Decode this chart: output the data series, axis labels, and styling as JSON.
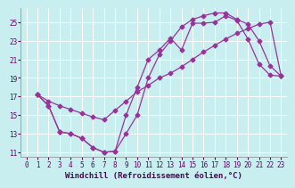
{
  "xlabel": "Windchill (Refroidissement éolien,°C)",
  "bg_color": "#c8eef0",
  "line_color": "#993399",
  "grid_color": "#ffffff",
  "xlim": [
    -0.5,
    23.5
  ],
  "ylim": [
    10.5,
    26.5
  ],
  "yticks": [
    11,
    13,
    15,
    17,
    19,
    21,
    23,
    25
  ],
  "xticks": [
    0,
    1,
    2,
    3,
    4,
    5,
    6,
    7,
    8,
    9,
    10,
    11,
    12,
    13,
    14,
    15,
    16,
    17,
    18,
    19,
    20,
    21,
    22,
    23
  ],
  "line1_x": [
    1,
    2,
    3,
    4,
    5,
    6,
    7,
    8,
    9,
    10,
    11,
    12,
    13,
    14,
    15,
    16,
    17,
    18,
    19,
    20,
    21,
    22,
    23
  ],
  "line1_y": [
    17.2,
    16.0,
    13.2,
    13.0,
    12.5,
    11.5,
    11.0,
    11.1,
    15.0,
    18.0,
    21.0,
    22.0,
    23.3,
    22.0,
    24.9,
    24.9,
    25.0,
    25.7,
    25.2,
    23.2,
    20.5,
    19.3,
    19.2
  ],
  "line2_x": [
    1,
    2,
    3,
    4,
    5,
    6,
    7,
    8,
    9,
    10,
    11,
    12,
    13,
    14,
    15,
    16,
    17,
    18,
    19,
    20,
    21,
    22,
    23
  ],
  "line2_y": [
    17.2,
    16.5,
    16.0,
    15.6,
    15.2,
    14.8,
    14.5,
    15.5,
    16.5,
    17.5,
    18.2,
    19.0,
    19.5,
    20.2,
    21.0,
    21.8,
    22.5,
    23.2,
    23.8,
    24.3,
    24.8,
    25.0,
    19.2
  ],
  "line3_x": [
    1,
    2,
    3,
    4,
    5,
    6,
    7,
    8,
    9,
    10,
    11,
    12,
    13,
    14,
    15,
    16,
    17,
    18,
    19,
    20,
    21,
    22,
    23
  ],
  "line3_y": [
    17.2,
    16.0,
    13.2,
    13.0,
    12.5,
    11.5,
    11.0,
    11.1,
    13.0,
    15.0,
    19.0,
    21.5,
    23.0,
    24.5,
    25.3,
    25.7,
    26.0,
    26.0,
    25.3,
    24.8,
    23.0,
    20.3,
    19.2
  ],
  "marker": "D",
  "markersize": 2.5,
  "linewidth": 0.9,
  "xlabel_fontsize": 6.5,
  "tick_fontsize": 5.5
}
